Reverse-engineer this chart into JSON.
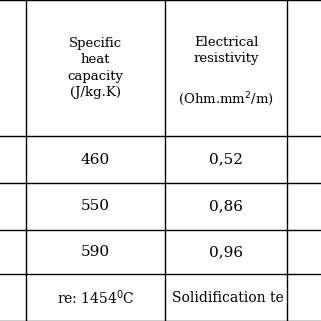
{
  "header_col1": "Specific\nheat\ncapacity\n(J/kg.K)",
  "header_col2_line1": "Electrical\nresistivity",
  "header_col2_line2": "(Ohm.mm$^2$/m)",
  "rows": [
    [
      "460",
      "0,52"
    ],
    [
      "550",
      "0,86"
    ],
    [
      "590",
      "0,96"
    ]
  ],
  "footer_col1": "re: 1454$^0$C",
  "footer_col2": "Solidification te",
  "bg_color": "#ffffff",
  "line_color": "#000000",
  "text_color": "#000000",
  "header_font_size": 9.5,
  "data_font_size": 11,
  "footer_font_size": 10,
  "col_bounds": [
    0.0,
    0.075,
    0.085,
    0.515,
    0.525,
    0.895,
    0.905,
    1.0
  ],
  "row_bounds": [
    0.0,
    0.555,
    0.685,
    0.775,
    0.865,
    1.0
  ]
}
